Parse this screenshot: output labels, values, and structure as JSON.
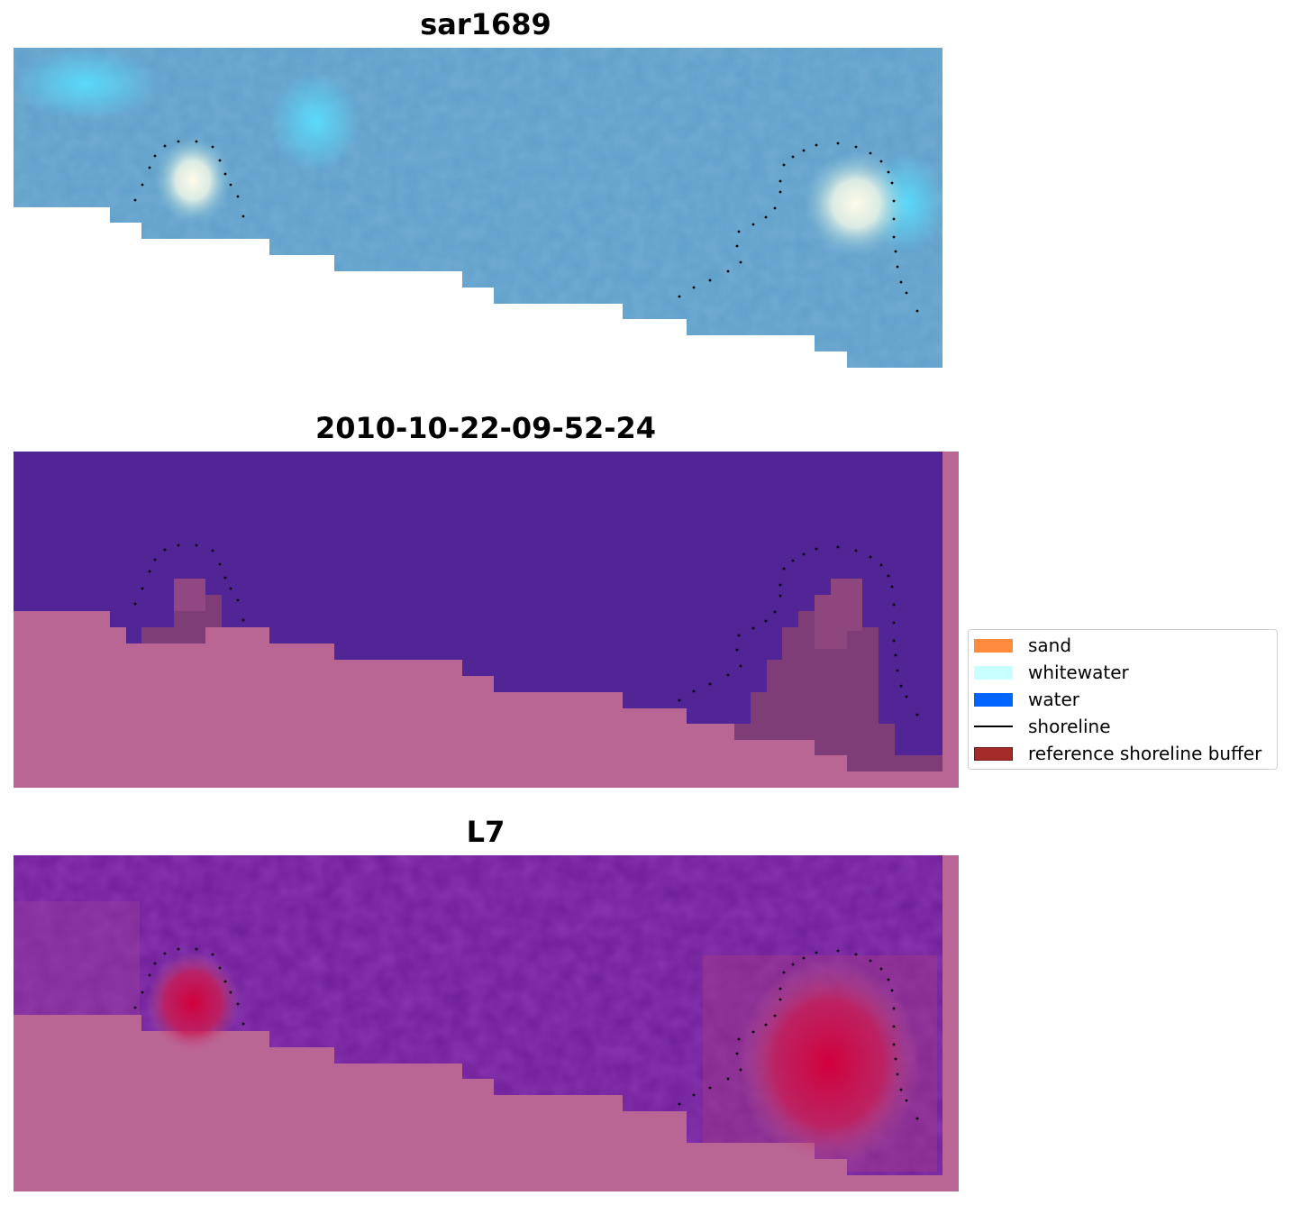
{
  "panels": [
    {
      "title": "sar1689"
    },
    {
      "title": "2010-10-22-09-52-24"
    },
    {
      "title": "L7"
    }
  ],
  "legend": {
    "items": [
      {
        "label": "sand",
        "color": "#ff8c3c",
        "kind": "patch"
      },
      {
        "label": "whitewater",
        "color": "#c8ffff",
        "kind": "patch"
      },
      {
        "label": "water",
        "color": "#0064ff",
        "kind": "patch"
      },
      {
        "label": "shoreline",
        "color": "#000000",
        "kind": "line"
      },
      {
        "label": "reference shoreline buffer",
        "color": "#a52a2a",
        "kind": "patch"
      }
    ]
  },
  "colors": {
    "land_pink": "#ba6695",
    "class_water": "#522596",
    "buffer": "#7e3d76",
    "rgb_water": "#5f9fc9",
    "whitewater_bright": "#fdf8de",
    "l7_purple": "#6d1c97",
    "l7_red": "#d1003c"
  }
}
